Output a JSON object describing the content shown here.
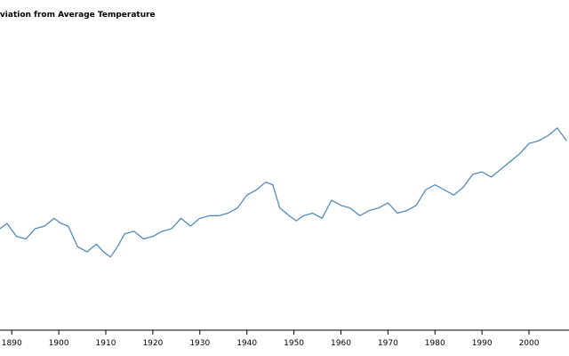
{
  "chart_data": {
    "type": "line",
    "title": "Monthly Deviation from Average Temperature",
    "xlabel": "",
    "ylabel": "",
    "xlim": [
      1887.5,
      2008.5
    ],
    "ylim": [
      -1.0,
      1.0
    ],
    "xticks": [
      "1890",
      "1900",
      "1910",
      "1920",
      "1930",
      "1940",
      "1950",
      "1960",
      "1970",
      "1980",
      "1990",
      "2000"
    ],
    "grid": false,
    "legend": "none",
    "series_color": "#4682b4",
    "series": [
      {
        "x": [
          1887.5,
          1889.0,
          1891.0,
          1893.0,
          1895.0,
          1897.0,
          1899.0,
          1900.5,
          1902.0,
          1904.0,
          1906.0,
          1908.0,
          1909.5,
          1911.0,
          1912.5,
          1914.0,
          1916.0,
          1918.0,
          1920.0,
          1922.0,
          1924.0,
          1926.0,
          1928.0,
          1930.0,
          1932.0,
          1934.0,
          1936.0,
          1938.0,
          1940.0,
          1942.0,
          1944.0,
          1945.5,
          1947.0,
          1949.0,
          1950.5,
          1952.0,
          1954.0,
          1956.0,
          1958.0,
          1960.0,
          1962.0,
          1964.0,
          1966.0,
          1968.0,
          1970.0,
          1972.0,
          1974.0,
          1976.0,
          1978.0,
          1980.0,
          1982.0,
          1984.0,
          1986.0,
          1988.0,
          1990.0,
          1992.0,
          1994.0,
          1996.0,
          1998.0,
          2000.0,
          2002.0,
          2004.0,
          2006.0,
          2008.0
        ],
        "values": [
          -0.22,
          -0.18,
          -0.28,
          -0.3,
          -0.22,
          -0.2,
          -0.14,
          -0.18,
          -0.2,
          -0.36,
          -0.4,
          -0.34,
          -0.4,
          -0.44,
          -0.36,
          -0.26,
          -0.24,
          -0.3,
          -0.28,
          -0.24,
          -0.22,
          -0.14,
          -0.2,
          -0.14,
          -0.12,
          -0.12,
          -0.1,
          -0.06,
          0.04,
          0.08,
          0.14,
          0.12,
          -0.06,
          -0.12,
          -0.16,
          -0.12,
          -0.1,
          -0.14,
          0.0,
          -0.04,
          -0.06,
          -0.12,
          -0.08,
          -0.06,
          -0.02,
          -0.1,
          -0.08,
          -0.04,
          0.08,
          0.12,
          0.08,
          0.04,
          0.1,
          0.2,
          0.22,
          0.18,
          0.24,
          0.3,
          0.36,
          0.44,
          0.46,
          0.5,
          0.56,
          0.46
        ]
      }
    ]
  }
}
